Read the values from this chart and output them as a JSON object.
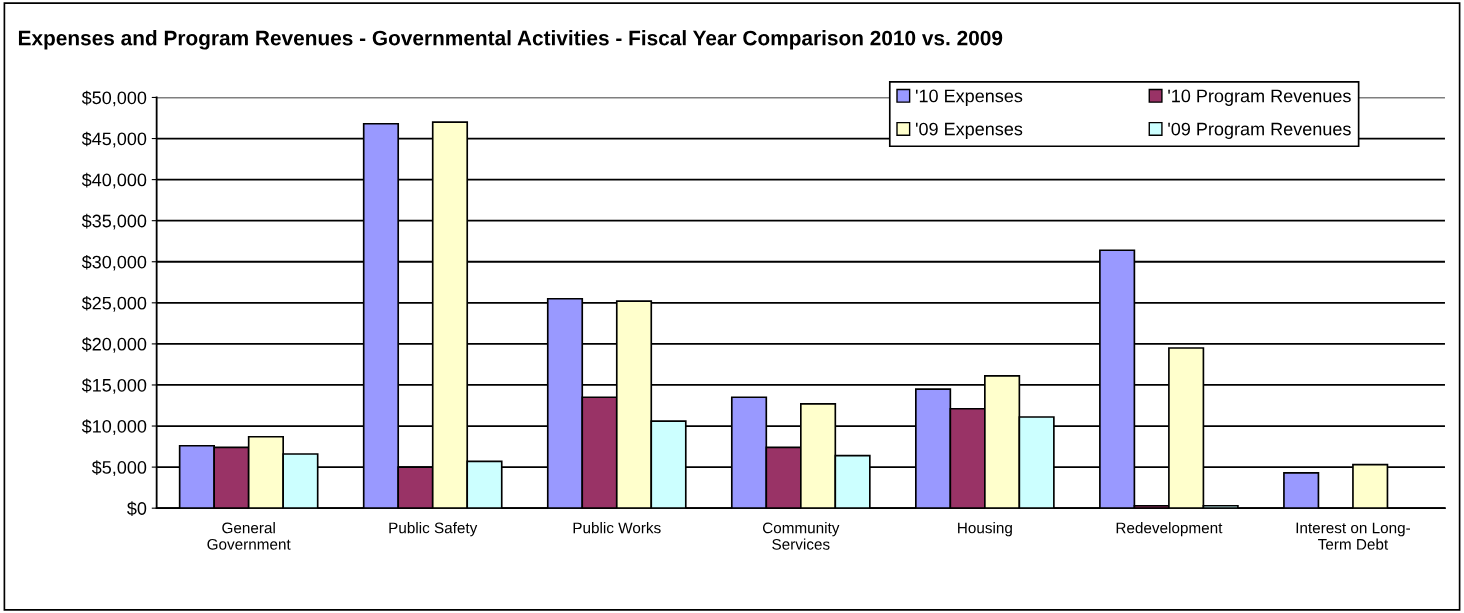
{
  "chart_data": {
    "type": "bar",
    "title": "Expenses and Program Revenues - Governmental Activities - Fiscal Year Comparison 2010 vs. 2009",
    "categories": [
      "General\nGovernment",
      "Public Safety",
      "Public Works",
      "Community\nServices",
      "Housing",
      "Redevelopment",
      "Interest on Long-\nTerm Debt"
    ],
    "series": [
      {
        "name": "'10 Expenses",
        "color": "#9999ff",
        "values": [
          7600,
          46800,
          25500,
          13500,
          14500,
          31400,
          4300
        ]
      },
      {
        "name": "'10 Program Revenues",
        "color": "#993366",
        "values": [
          7400,
          5000,
          13500,
          7400,
          12100,
          300,
          null
        ]
      },
      {
        "name": "'09 Expenses",
        "color": "#ffffcc",
        "values": [
          8700,
          47000,
          25200,
          12700,
          16100,
          19500,
          5300
        ]
      },
      {
        "name": "'09 Program Revenues",
        "color": "#ccffff",
        "values": [
          6600,
          5700,
          10600,
          6400,
          11100,
          300,
          null
        ]
      }
    ],
    "ylim": [
      0,
      50000
    ],
    "yticks": [
      {
        "value": 0,
        "label": "$0"
      },
      {
        "value": 5000,
        "label": "$5,000"
      },
      {
        "value": 10000,
        "label": "$10,000"
      },
      {
        "value": 15000,
        "label": "$15,000"
      },
      {
        "value": 20000,
        "label": "$20,000"
      },
      {
        "value": 25000,
        "label": "$25,000"
      },
      {
        "value": 30000,
        "label": "$30,000"
      },
      {
        "value": 35000,
        "label": "$35,000"
      },
      {
        "value": 40000,
        "label": "$40,000"
      },
      {
        "value": 45000,
        "label": "$45,000"
      },
      {
        "value": 50000,
        "label": "$50,000"
      }
    ],
    "grid": "y",
    "legend": "top right"
  }
}
